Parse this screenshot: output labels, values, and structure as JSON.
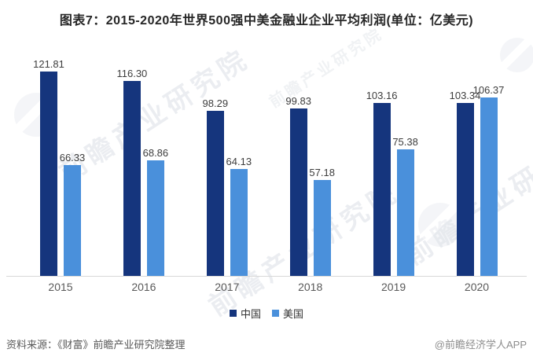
{
  "chart_data": {
    "type": "bar",
    "title": "图表7：2015-2020年世界500强中美金融业企业平均利润(单位：亿美元)",
    "unit": "亿美元",
    "categories": [
      "2015",
      "2016",
      "2017",
      "2018",
      "2019",
      "2020"
    ],
    "series": [
      {
        "name": "中国",
        "color": "#15357d",
        "values": [
          121.81,
          116.3,
          98.29,
          99.83,
          103.16,
          103.34
        ],
        "labels": [
          "121.81",
          "116.30",
          "98.29",
          "99.83",
          "103.16",
          "103.34"
        ]
      },
      {
        "name": "美国",
        "color": "#4a90db",
        "values": [
          66.33,
          68.86,
          64.13,
          57.18,
          75.38,
          106.37
        ],
        "labels": [
          "66.33",
          "68.86",
          "64.13",
          "57.18",
          "75.38",
          "106.37"
        ]
      }
    ],
    "value_labels": true,
    "grid": false,
    "legend_position": "bottom",
    "axis_line_color": "#d9d9d9"
  },
  "footer": {
    "source": "资料来源：《财富》前瞻产业研究院整理",
    "credit": "@前瞻经济学人APP"
  },
  "watermark": {
    "text": "前瞻产业研究院"
  }
}
